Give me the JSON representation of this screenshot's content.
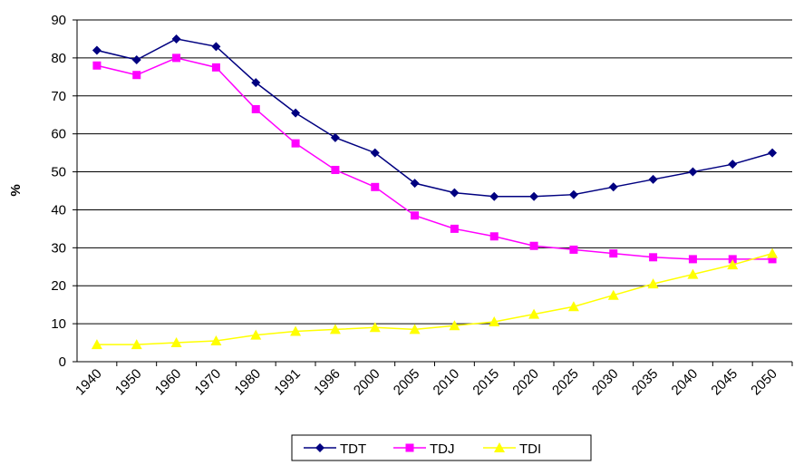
{
  "chart_data": {
    "type": "line",
    "categories": [
      "1940",
      "1950",
      "1960",
      "1970",
      "1980",
      "1991",
      "1996",
      "2000",
      "2005",
      "2010",
      "2015",
      "2020",
      "2025",
      "2030",
      "2035",
      "2040",
      "2045",
      "2050"
    ],
    "y_label": "%",
    "ylim": [
      0,
      90
    ],
    "yticks": [
      0,
      10,
      20,
      30,
      40,
      50,
      60,
      70,
      80,
      90
    ],
    "grid": true,
    "legend": "bottom",
    "series": [
      {
        "name": "TDT",
        "color": "#000080",
        "marker": "diamond",
        "values": [
          82,
          79.5,
          85,
          83,
          73.5,
          65.5,
          59,
          55,
          47,
          44.5,
          43.5,
          43.5,
          44,
          46,
          48,
          50,
          52,
          55
        ]
      },
      {
        "name": "TDJ",
        "color": "#ff00ff",
        "marker": "square",
        "values": [
          78,
          75.5,
          80,
          77.5,
          66.5,
          57.5,
          50.5,
          46,
          38.5,
          35,
          33,
          30.5,
          29.5,
          28.5,
          27.5,
          27,
          27,
          27
        ]
      },
      {
        "name": "TDI",
        "color": "#ffff00",
        "marker": "triangle",
        "values": [
          4.5,
          4.5,
          5,
          5.5,
          7,
          8,
          8.5,
          9,
          8.5,
          9.5,
          10.5,
          12.5,
          14.5,
          17.5,
          20.5,
          23,
          25.5,
          28.5
        ]
      }
    ]
  }
}
